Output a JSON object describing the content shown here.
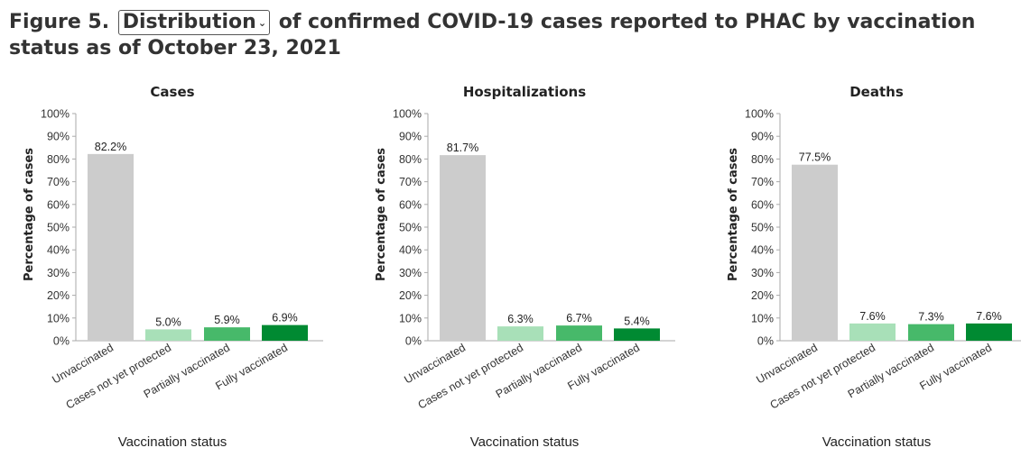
{
  "title": {
    "prefix": "Figure 5.",
    "selector_value": "Distribution",
    "suffix": "of confirmed COVID-19 cases reported to PHAC by vaccination status as of October 23, 2021"
  },
  "chart_data": [
    {
      "type": "bar",
      "title": "Cases",
      "categories": [
        "Unvaccinated",
        "Cases not yet protected",
        "Partially vaccinated",
        "Fully vaccinated"
      ],
      "values": [
        82.2,
        5.0,
        5.9,
        6.9
      ],
      "value_labels": [
        "82.2%",
        "5.0%",
        "5.9%",
        "6.9%"
      ],
      "xlabel": "Vaccination status",
      "ylabel": "Percentage of cases",
      "ylim": [
        0,
        100
      ],
      "yticks": [
        "0%",
        "10%",
        "20%",
        "30%",
        "40%",
        "50%",
        "60%",
        "70%",
        "80%",
        "90%",
        "100%"
      ]
    },
    {
      "type": "bar",
      "title": "Hospitalizations",
      "categories": [
        "Unvaccinated",
        "Cases not yet protected",
        "Partially vaccinated",
        "Fully vaccinated"
      ],
      "values": [
        81.7,
        6.3,
        6.7,
        5.4
      ],
      "value_labels": [
        "81.7%",
        "6.3%",
        "6.7%",
        "5.4%"
      ],
      "xlabel": "Vaccination status",
      "ylabel": "Percentage of cases",
      "ylim": [
        0,
        100
      ],
      "yticks": [
        "0%",
        "10%",
        "20%",
        "30%",
        "40%",
        "50%",
        "60%",
        "70%",
        "80%",
        "90%",
        "100%"
      ]
    },
    {
      "type": "bar",
      "title": "Deaths",
      "categories": [
        "Unvaccinated",
        "Cases not yet protected",
        "Partially vaccinated",
        "Fully vaccinated"
      ],
      "values": [
        77.5,
        7.6,
        7.3,
        7.6
      ],
      "value_labels": [
        "77.5%",
        "7.6%",
        "7.3%",
        "7.6%"
      ],
      "xlabel": "Vaccination status",
      "ylabel": "Percentage of cases",
      "ylim": [
        0,
        100
      ],
      "yticks": [
        "0%",
        "10%",
        "20%",
        "30%",
        "40%",
        "50%",
        "60%",
        "70%",
        "80%",
        "90%",
        "100%"
      ]
    }
  ],
  "colors": {
    "unvaccinated": "#cccccc",
    "not_yet_protected": "#a8e0b8",
    "partially_vaccinated": "#47b96a",
    "fully_vaccinated": "#008a32",
    "axis": "#aaaaaa"
  }
}
